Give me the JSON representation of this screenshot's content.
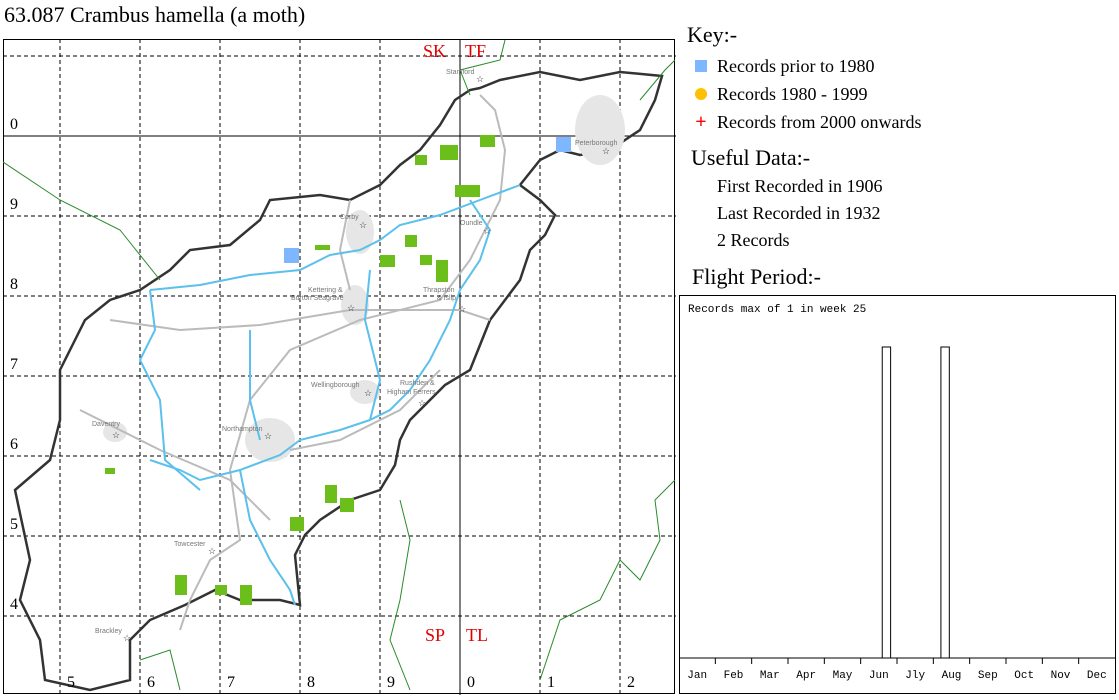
{
  "title": "63.087 Crambus hamella (a moth)",
  "key": {
    "heading": "Key:-",
    "items": [
      {
        "label": "Records prior to 1980",
        "symbol": "square",
        "color": "#7eb6ff"
      },
      {
        "label": "Records 1980 - 1999",
        "symbol": "circle",
        "color": "#ffc000"
      },
      {
        "label": "Records from 2000 onwards",
        "symbol": "cross",
        "color": "#ff0000"
      }
    ]
  },
  "useful_data": {
    "heading": "Useful Data:-",
    "first": "First Recorded in 1906",
    "last": "Last Recorded in 1932",
    "count": "2 Records"
  },
  "flight_period": {
    "heading": "Flight Period:-"
  },
  "map": {
    "grid_squares": {
      "nw": "SK",
      "ne": "TF",
      "sw": "SP",
      "se": "TL"
    },
    "row_labels": [
      "0",
      "9",
      "8",
      "7",
      "6",
      "5",
      "4"
    ],
    "col_labels": [
      "5",
      "6",
      "7",
      "8",
      "9",
      "0",
      "1",
      "2"
    ],
    "towns": [
      "Stamford",
      "Peterborough",
      "Corby",
      "Oundle",
      "Kettering &",
      "Burton Seagrave",
      "Thrapston",
      "& Islip",
      "Wellingborough",
      "Rushden &",
      "Higham Ferrers",
      "Daventry",
      "Northampton",
      "Towcester",
      "Brackley"
    ],
    "records_prior_1980": 2
  },
  "chart_data": {
    "type": "bar",
    "title": "Records max of 1 in week 25",
    "x_unit": "week",
    "xlim": [
      1,
      52
    ],
    "ylim": [
      0,
      1
    ],
    "months": [
      "Jan",
      "Feb",
      "Mar",
      "Apr",
      "May",
      "Jun",
      "Jly",
      "Aug",
      "Sep",
      "Oct",
      "Nov",
      "Dec"
    ],
    "points": [
      {
        "week": 25,
        "value": 1
      },
      {
        "week": 32,
        "value": 1
      }
    ]
  }
}
